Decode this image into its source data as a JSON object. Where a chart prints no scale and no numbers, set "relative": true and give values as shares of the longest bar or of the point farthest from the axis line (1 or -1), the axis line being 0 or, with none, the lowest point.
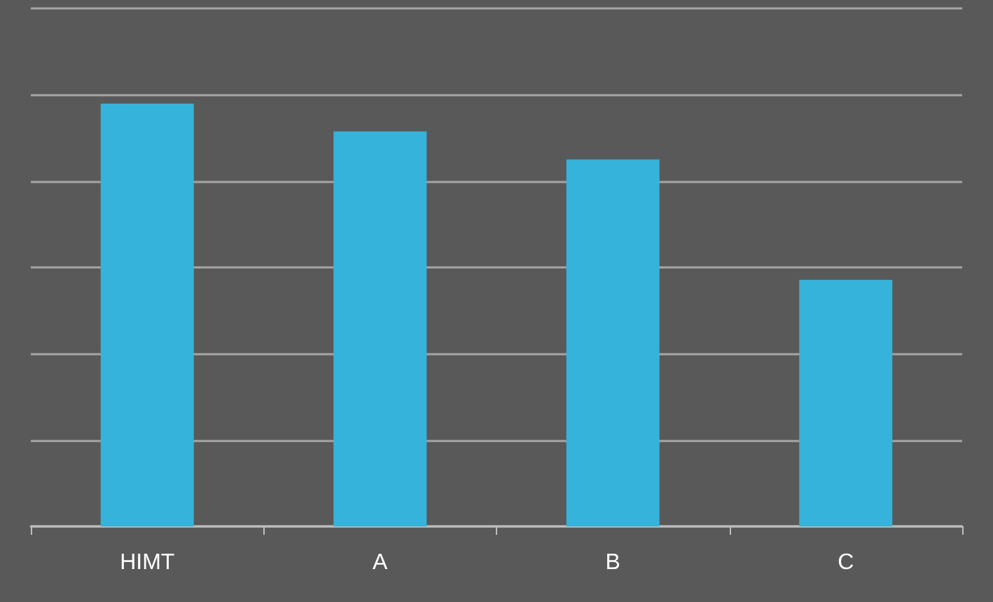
{
  "chart_data": {
    "type": "bar",
    "relative": true,
    "categories": [
      "HIMT",
      "A",
      "B",
      "C"
    ],
    "values": [
      1,
      0.934,
      0.868,
      0.583
    ],
    "color": "#35b3da",
    "grid": true
  }
}
